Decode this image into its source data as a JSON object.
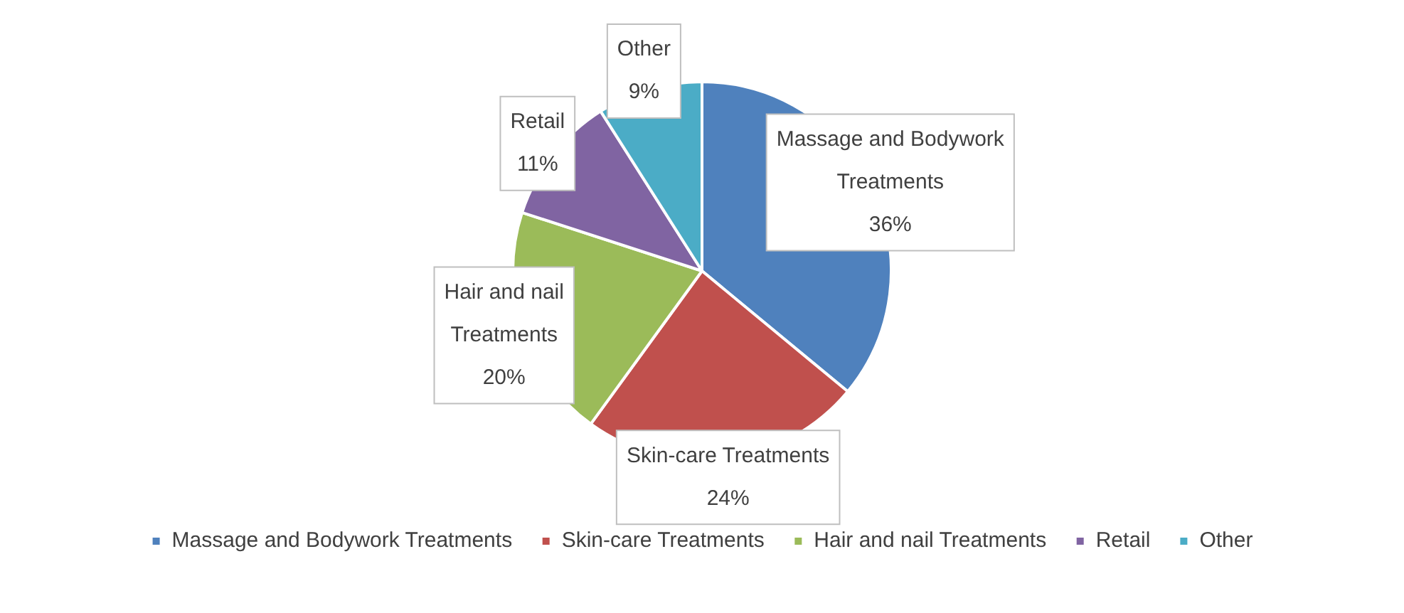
{
  "chart_data": {
    "type": "pie",
    "categories": [
      "Massage and Bodywork Treatments",
      "Skin-care Treatments",
      "Hair and nail Treatments",
      "Retail",
      "Other"
    ],
    "values": [
      36,
      24,
      20,
      11,
      9
    ],
    "value_labels": [
      "36%",
      "24%",
      "20%",
      "11%",
      "9%"
    ],
    "colors": [
      "#4f81bd",
      "#c0504d",
      "#9bbb59",
      "#8064a2",
      "#4bacc6"
    ],
    "legend": "bottom"
  }
}
